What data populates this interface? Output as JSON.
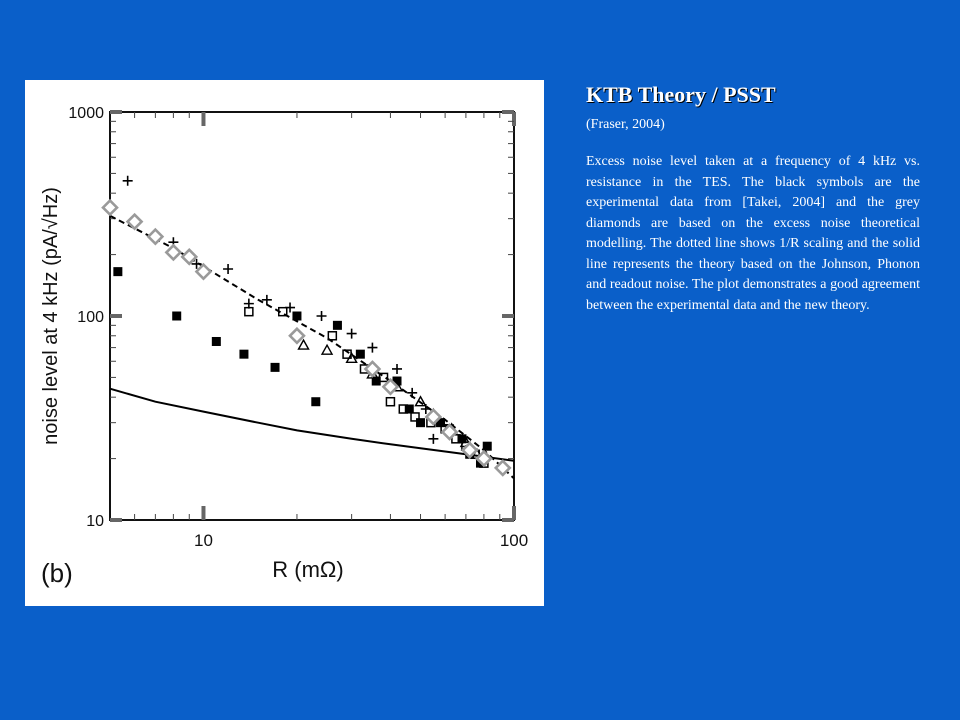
{
  "slide": {
    "title": "KTB Theory / PSST",
    "citation": "(Fraser, 2004)",
    "description": "Excess noise level taken at a frequency of 4 kHz vs. resistance in the TES.  The black symbols are the experimental data from [Takei, 2004] and the grey diamonds are based on the excess noise theoretical modelling.  The dotted line shows 1/R scaling and the solid line represents the theory based on the Johnson, Phonon and readout noise.  The plot demonstrates a good agreement between the experimental data and the new theory.",
    "background_color": "#0a5fc9",
    "text_color": "#ffffff"
  },
  "chart_data": {
    "type": "scatter",
    "panel_label": "(b)",
    "xlabel": "R (mΩ)",
    "ylabel": "noise level at 4 kHz (pA/√Hz)",
    "xscale": "log",
    "yscale": "log",
    "xlim": [
      5,
      100
    ],
    "ylim": [
      10,
      1000
    ],
    "x_ticks": [
      {
        "value": 10,
        "label": "10"
      },
      {
        "value": 100,
        "label": "100"
      }
    ],
    "y_ticks": [
      {
        "value": 10,
        "label": "10"
      },
      {
        "value": 100,
        "label": "100"
      },
      {
        "value": 1000,
        "label": "1000"
      }
    ],
    "series": [
      {
        "marker": "filled-square",
        "color": "#000000",
        "points": [
          [
            5.3,
            165
          ],
          [
            8.2,
            100
          ],
          [
            11,
            75
          ],
          [
            13.5,
            65
          ],
          [
            17,
            56
          ],
          [
            20,
            100
          ],
          [
            23,
            38
          ],
          [
            27,
            90
          ],
          [
            32,
            65
          ],
          [
            36,
            48
          ],
          [
            42,
            48
          ],
          [
            46,
            35
          ],
          [
            50,
            30
          ],
          [
            58,
            30
          ],
          [
            62,
            28
          ],
          [
            68,
            25
          ],
          [
            72,
            21
          ],
          [
            78,
            19
          ],
          [
            82,
            23
          ]
        ]
      },
      {
        "marker": "plus",
        "color": "#000000",
        "points": [
          [
            5.7,
            460
          ],
          [
            8,
            230
          ],
          [
            9.5,
            180
          ],
          [
            12,
            170
          ],
          [
            14,
            115
          ],
          [
            16,
            120
          ],
          [
            19,
            110
          ],
          [
            24,
            100
          ],
          [
            30,
            82
          ],
          [
            35,
            70
          ],
          [
            42,
            55
          ],
          [
            47,
            42
          ],
          [
            52,
            35
          ],
          [
            55,
            25
          ],
          [
            62,
            27
          ],
          [
            70,
            22
          ],
          [
            78,
            20
          ]
        ]
      },
      {
        "marker": "open-square",
        "color": "#000000",
        "points": [
          [
            14,
            105
          ],
          [
            18,
            105
          ],
          [
            26,
            80
          ],
          [
            29,
            65
          ],
          [
            33,
            55
          ],
          [
            38,
            50
          ],
          [
            40,
            38
          ],
          [
            44,
            35
          ],
          [
            48,
            32
          ],
          [
            54,
            30
          ],
          [
            60,
            28
          ],
          [
            65,
            25
          ],
          [
            70,
            23
          ],
          [
            75,
            21
          ],
          [
            80,
            19
          ]
        ]
      },
      {
        "marker": "open-triangle",
        "color": "#000000",
        "points": [
          [
            21,
            72
          ],
          [
            25,
            68
          ],
          [
            30,
            62
          ],
          [
            35,
            52
          ],
          [
            42,
            45
          ],
          [
            50,
            38
          ],
          [
            55,
            33
          ],
          [
            63,
            28
          ],
          [
            70,
            24
          ],
          [
            76,
            21
          ]
        ]
      },
      {
        "marker": "open-diamond",
        "color": "#9a9a9a",
        "points": [
          [
            5,
            340
          ],
          [
            6,
            290
          ],
          [
            7,
            245
          ],
          [
            8,
            205
          ],
          [
            9,
            195
          ],
          [
            10,
            165
          ],
          [
            20,
            80
          ],
          [
            35,
            55
          ],
          [
            40,
            45
          ],
          [
            55,
            32
          ],
          [
            62,
            27
          ],
          [
            72,
            22
          ],
          [
            80,
            20
          ],
          [
            92,
            18
          ]
        ]
      },
      {
        "line": "dashed",
        "color": "#000000",
        "points": [
          [
            5,
            310
          ],
          [
            8,
            215
          ],
          [
            15,
            120
          ],
          [
            25,
            78
          ],
          [
            40,
            48
          ],
          [
            60,
            31
          ],
          [
            80,
            22
          ],
          [
            100,
            16
          ]
        ]
      },
      {
        "line": "solid",
        "color": "#000000",
        "points": [
          [
            5,
            44
          ],
          [
            7,
            38
          ],
          [
            10,
            34
          ],
          [
            15,
            30
          ],
          [
            20,
            27.5
          ],
          [
            30,
            25
          ],
          [
            40,
            23.5
          ],
          [
            50,
            22.5
          ],
          [
            70,
            21
          ],
          [
            100,
            19.5
          ]
        ]
      }
    ]
  }
}
